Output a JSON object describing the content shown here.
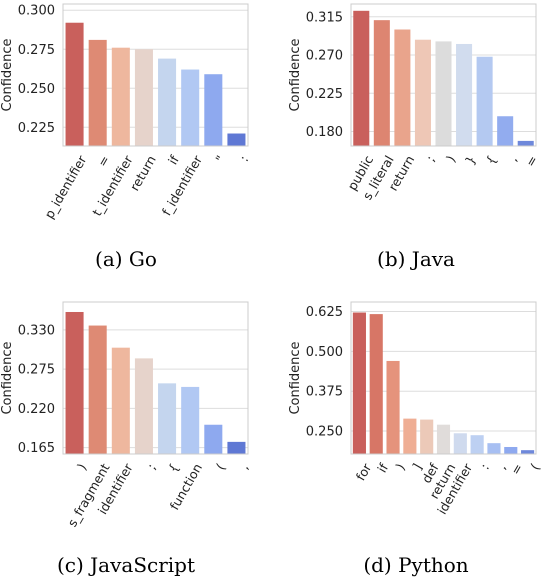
{
  "chart_data": [
    {
      "type": "bar",
      "caption": "(a) Go",
      "ylabel": "Confidence",
      "ylim": [
        0.213,
        0.304
      ],
      "yticks": [
        "0.225",
        "0.250",
        "0.275",
        "0.300"
      ],
      "yticks_values": [
        0.225,
        0.25,
        0.275,
        0.3
      ],
      "categories": [
        "p_identifier",
        "=",
        "t_identifier",
        "return",
        "if",
        "f_identifier",
        "\"",
        ":"
      ],
      "values": [
        0.292,
        0.281,
        0.276,
        0.275,
        0.269,
        0.262,
        0.259,
        0.221
      ],
      "grid": "horizontal",
      "colors": [
        "#c9605c",
        "#de8a74",
        "#eeb79e",
        "#e6d3cb",
        "#c4d5ee",
        "#b1c8f3",
        "#8ea9ef",
        "#5f78d4"
      ]
    },
    {
      "type": "bar",
      "caption": "(b) Java",
      "ylabel": "Confidence",
      "ylim": [
        0.163,
        0.33
      ],
      "yticks": [
        "0.180",
        "0.225",
        "0.270",
        "0.315"
      ],
      "yticks_values": [
        0.18,
        0.225,
        0.27,
        0.315
      ],
      "categories": [
        "public",
        "s_literal",
        "return",
        ";",
        ")",
        "}",
        "{",
        ",",
        "="
      ],
      "values": [
        0.322,
        0.311,
        0.3,
        0.288,
        0.286,
        0.283,
        0.268,
        0.198,
        0.169
      ],
      "grid": "horizontal",
      "colors": [
        "#c9605c",
        "#dd8571",
        "#e9a48c",
        "#eec7b6",
        "#dcdcdc",
        "#d1dcee",
        "#b4c9f1",
        "#92acef",
        "#6e88db"
      ]
    },
    {
      "type": "bar",
      "caption": "(c) JavaScript",
      "ylabel": "Confidence",
      "ylim": [
        0.156,
        0.369
      ],
      "yticks": [
        "0.165",
        "0.220",
        "0.275",
        "0.330"
      ],
      "yticks_values": [
        0.165,
        0.22,
        0.275,
        0.33
      ],
      "categories": [
        ")",
        "s_fragment",
        "identifier",
        ";",
        "{",
        "function",
        "(",
        ","
      ],
      "values": [
        0.355,
        0.336,
        0.305,
        0.29,
        0.255,
        0.25,
        0.197,
        0.173
      ],
      "grid": "horizontal",
      "colors": [
        "#c9605c",
        "#de8a74",
        "#eeb79e",
        "#e6d3cb",
        "#c4d5ee",
        "#b1c8f3",
        "#8ea9ef",
        "#5f78d4"
      ]
    },
    {
      "type": "bar",
      "caption": "(d) Python",
      "ylabel": "Confidence",
      "ylim": [
        0.178,
        0.655
      ],
      "yticks": [
        "0.250",
        "0.375",
        "0.500",
        "0.625"
      ],
      "yticks_values": [
        0.25,
        0.375,
        0.5,
        0.625
      ],
      "categories": [
        "for",
        "if",
        ")",
        "]",
        "def",
        "return",
        "identifier",
        ":",
        ",",
        "=",
        "("
      ],
      "values": [
        0.622,
        0.617,
        0.47,
        0.289,
        0.286,
        0.27,
        0.243,
        0.237,
        0.212,
        0.2,
        0.19
      ],
      "grid": "horizontal",
      "colors": [
        "#c9605c",
        "#d77666",
        "#e5937c",
        "#efae94",
        "#ecc9b8",
        "#e0dcda",
        "#cfdaee",
        "#bdd0f2",
        "#a7bff2",
        "#8ea9ef",
        "#6e88db"
      ]
    }
  ]
}
